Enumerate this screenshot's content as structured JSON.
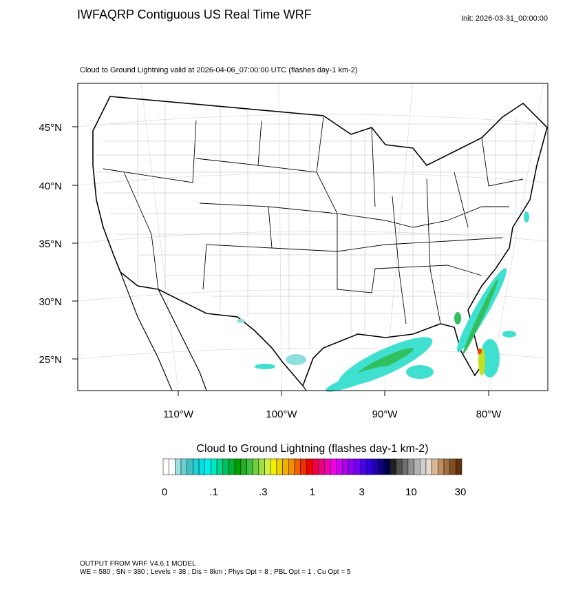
{
  "header": {
    "title": "IWFAQRP Contiguous US Real Time WRF",
    "init": "Init: 2026-03-31_00:00:00",
    "subtitle": "Cloud to Ground Lightning valid at 2026-04-06_07:00:00 UTC   (flashes day-1 km-2)"
  },
  "map": {
    "lat_labels": [
      "45°N",
      "40°N",
      "35°N",
      "30°N",
      "25°N"
    ],
    "lon_labels": [
      "110°W",
      "100°W",
      "90°W",
      "80°W"
    ]
  },
  "colorbar": {
    "title": "Cloud to Ground Lightning  (flashes day-1 km-2)",
    "ticks": [
      0,
      {
        "value": 0.1,
        "label": ".1"
      },
      {
        "value": 0.3,
        "label": ".3"
      },
      1,
      3,
      10,
      30
    ],
    "colors": [
      "#ffffff",
      "#ffffff",
      "#9ee0e0",
      "#6fd0d0",
      "#40c0c0",
      "#20d0d0",
      "#00e0e0",
      "#00f0f0",
      "#00e8c0",
      "#00d890",
      "#00c060",
      "#00b030",
      "#00a000",
      "#20b020",
      "#40c040",
      "#70d040",
      "#a0e040",
      "#d0f040",
      "#f0f000",
      "#f0d000",
      "#f0b000",
      "#f09000",
      "#f06000",
      "#f03000",
      "#f00000",
      "#f00040",
      "#f00080",
      "#f000b0",
      "#f000e0",
      "#d000f0",
      "#b000f0",
      "#9000f0",
      "#7000f0",
      "#5000f0",
      "#3000e0",
      "#2000b0",
      "#100080",
      "#000050",
      "#202020",
      "#505050",
      "#707070",
      "#909090",
      "#b0b0b0",
      "#d0d0d0",
      "#e8d8c8",
      "#d8b898",
      "#c09060",
      "#a07040",
      "#805020",
      "#603010"
    ]
  },
  "footer": {
    "line1": "OUTPUT FROM WRF V4.6.1 MODEL",
    "line2": "WE = 580 ; SN = 380 ; Levels = 38 ; Dis = 8km ; Phys Opt = 8 ; PBL Opt = 1 ; Cu Opt = 5"
  }
}
